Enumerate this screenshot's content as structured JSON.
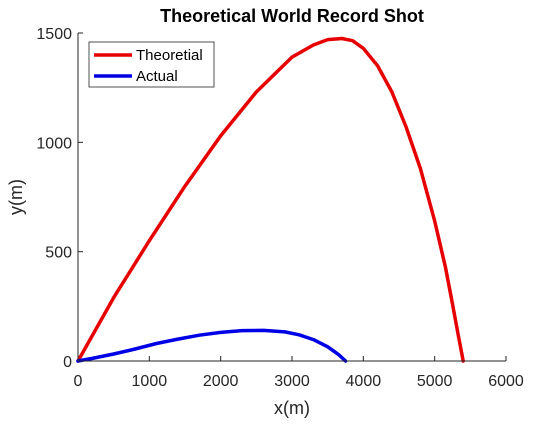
{
  "chart_data": {
    "type": "line",
    "title": "Theoretical World Record Shot",
    "xlabel": "x(m)",
    "ylabel": "y(m)",
    "xlim": [
      0,
      6000
    ],
    "ylim": [
      0,
      1500
    ],
    "xticks": [
      0,
      1000,
      2000,
      3000,
      4000,
      5000,
      6000
    ],
    "yticks": [
      0,
      500,
      1000,
      1500
    ],
    "xtick_labels": [
      "0",
      "1000",
      "2000",
      "3000",
      "4000",
      "5000",
      "6000"
    ],
    "ytick_labels": [
      "0",
      "500",
      "1000",
      "1500"
    ],
    "grid": false,
    "legend_position": "top-left",
    "series": [
      {
        "name": "Theoretial",
        "color": "#e60000",
        "x": [
          0,
          500,
          1000,
          1500,
          2000,
          2500,
          3000,
          3300,
          3500,
          3700,
          3850,
          4000,
          4200,
          4400,
          4600,
          4800,
          5000,
          5150,
          5250,
          5330,
          5400
        ],
        "y": [
          0,
          290,
          550,
          800,
          1030,
          1230,
          1390,
          1445,
          1470,
          1475,
          1465,
          1430,
          1350,
          1230,
          1070,
          880,
          640,
          430,
          260,
          120,
          0
        ]
      },
      {
        "name": "Actual",
        "color": "#0000e6",
        "x": [
          0,
          200,
          500,
          800,
          1100,
          1400,
          1700,
          2000,
          2300,
          2600,
          2900,
          3100,
          3300,
          3500,
          3650,
          3750
        ],
        "y": [
          0,
          12,
          32,
          55,
          80,
          100,
          118,
          131,
          139,
          140,
          133,
          120,
          98,
          65,
          30,
          0
        ]
      }
    ]
  }
}
